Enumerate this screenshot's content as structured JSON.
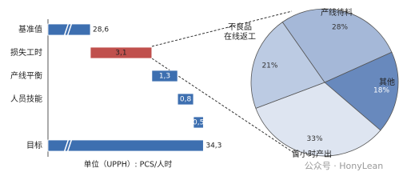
{
  "chart_data": [
    {
      "type": "waterfall",
      "categories": [
        "基准值",
        "损失工时",
        "产线平衡",
        "人员技能",
        null,
        "目标"
      ],
      "values": [
        28.6,
        3.1,
        1.3,
        0.8,
        0.5,
        34.3
      ],
      "value_labels": [
        "28,6",
        "3,1",
        "1,3",
        "0,8",
        "0,5",
        "34,3"
      ],
      "colors": [
        "#3d6fb0",
        "#c0504d",
        "#3d6fb0",
        "#3d6fb0",
        "#3d6fb0",
        "#3d6fb0"
      ],
      "x_label": "单位（UPPH）: PCS/人时",
      "axis_break": true
    },
    {
      "type": "pie",
      "categories": [
        "产线待料",
        "其他",
        "首小时产出",
        "不良品在线返工"
      ],
      "values": [
        28,
        18,
        33,
        21
      ],
      "value_labels": [
        "28%",
        "18%",
        "33%",
        "21%"
      ],
      "colors": [
        "#a5b8d8",
        "#6889bd",
        "#dee5f1",
        "#bccbe3"
      ]
    }
  ],
  "watermark": "公众号 · HonyLean"
}
